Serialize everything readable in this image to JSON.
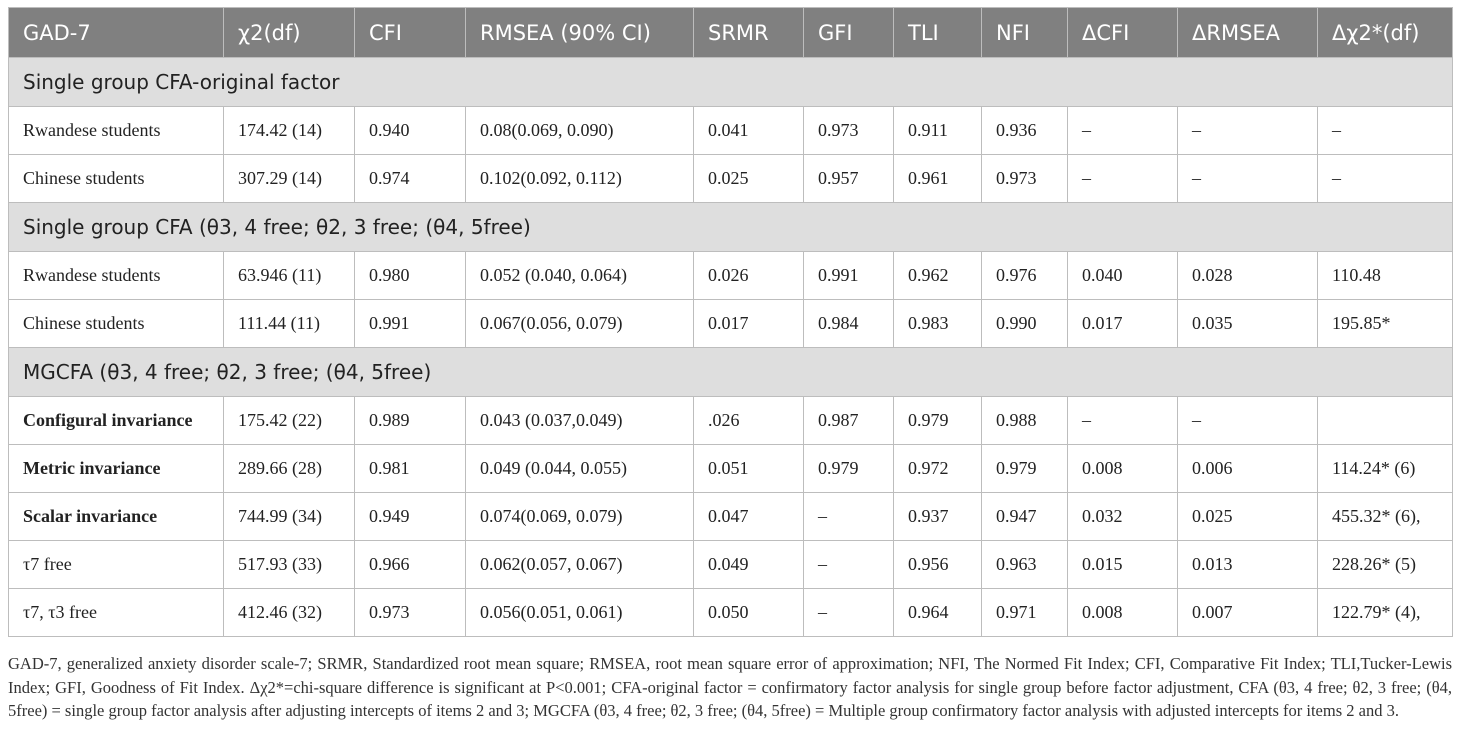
{
  "headers": [
    "GAD-7",
    "χ2(df)",
    "CFI",
    "RMSEA (90% CI)",
    "SRMR",
    "GFI",
    "TLI",
    "NFI",
    "ΔCFI",
    "ΔRMSEA",
    "Δχ2*(df)"
  ],
  "sections": [
    {
      "title": "Single group CFA-original factor",
      "rows": [
        [
          "Rwandese students",
          "174.42 (14)",
          "0.940",
          "0.08(0.069, 0.090)",
          "0.041",
          "0.973",
          "0.911",
          "0.936",
          "–",
          "–",
          "–"
        ],
        [
          "Chinese students",
          "307.29 (14)",
          "0.974",
          "0.102(0.092, 0.112)",
          "0.025",
          "0.957",
          "0.961",
          "0.973",
          "–",
          "–",
          "–"
        ]
      ]
    },
    {
      "title": "Single group CFA (θ3, 4 free; θ2, 3 free; (θ4, 5free)",
      "rows": [
        [
          "Rwandese students",
          "63.946 (11)",
          "0.980",
          "0.052 (0.040, 0.064)",
          "0.026",
          "0.991",
          "0.962",
          "0.976",
          "0.040",
          "0.028",
          "110.48"
        ],
        [
          "Chinese students",
          "111.44 (11)",
          "0.991",
          "0.067(0.056, 0.079)",
          "0.017",
          "0.984",
          "0.983",
          "0.990",
          "0.017",
          "0.035",
          "195.85*"
        ]
      ]
    },
    {
      "title": "MGCFA (θ3, 4 free; θ2, 3 free; (θ4, 5free)",
      "rows": [
        [
          "Configural invariance",
          "175.42 (22)",
          "0.989",
          "0.043 (0.037,0.049)",
          ".026",
          "0.987",
          "0.979",
          "0.988",
          "–",
          "–",
          ""
        ],
        [
          "Metric invariance",
          "289.66 (28)",
          "0.981",
          "0.049 (0.044, 0.055)",
          "0.051",
          "0.979",
          "0.972",
          "0.979",
          "0.008",
          "0.006",
          "114.24* (6)"
        ],
        [
          "Scalar invariance",
          "744.99 (34)",
          "0.949",
          "0.074(0.069, 0.079)",
          "0.047",
          "–",
          "0.937",
          "0.947",
          "0.032",
          "0.025",
          "455.32* (6),"
        ],
        [
          "τ7 free",
          "517.93 (33)",
          "0.966",
          "0.062(0.057, 0.067)",
          "0.049",
          "–",
          "0.956",
          "0.963",
          "0.015",
          "0.013",
          "228.26* (5)"
        ],
        [
          "τ7, τ3 free",
          "412.46 (32)",
          "0.973",
          "0.056(0.051, 0.061)",
          "0.050",
          "–",
          "0.964",
          "0.971",
          "0.008",
          "0.007",
          "122.79* (4),"
        ]
      ]
    }
  ],
  "footnote": "GAD-7, generalized anxiety disorder scale-7; SRMR, Standardized root mean square; RMSEA, root mean square error of approximation; NFI, The Normed Fit Index; CFI, Comparative Fit Index; TLI,Tucker-Lewis Index; GFI, Goodness of Fit Index. Δχ2*=chi-square difference is significant at P<0.001; CFA-original factor = confirmatory factor analysis for single group before factor adjustment, CFA (θ3, 4 free; θ2, 3 free; (θ4, 5free) = single group factor analysis after adjusting intercepts of items 2 and 3; MGCFA (θ3, 4 free; θ2, 3 free; (θ4, 5free) = Multiple group confirmatory factor analysis with adjusted intercepts for items 2 and 3."
}
